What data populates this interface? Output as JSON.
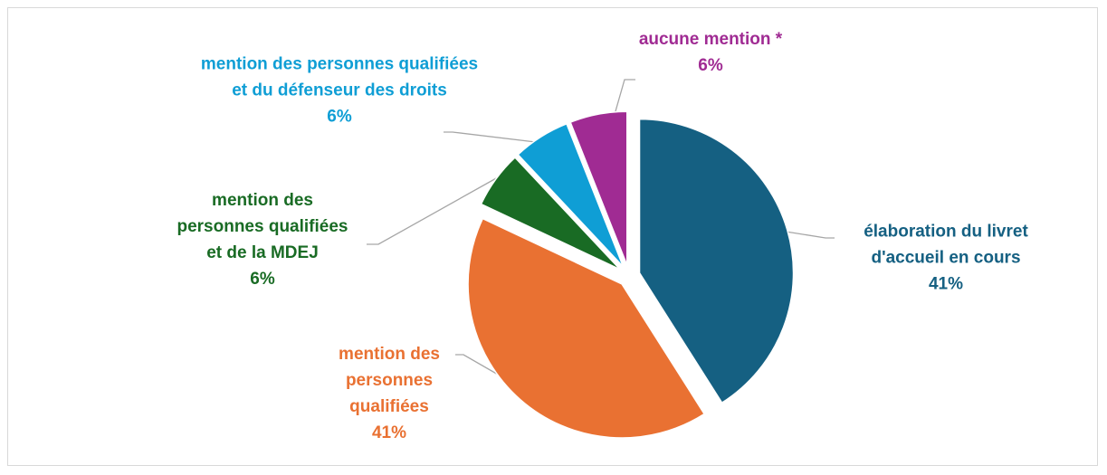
{
  "chart_data": {
    "type": "pie",
    "categories": [
      "élaboration du livret d'accueil en cours",
      "mention des personnes qualifiées",
      "mention des personnes qualifiées et de la MDEJ",
      "mention des personnes qualifiées et du défenseur des droits",
      "aucune mention *"
    ],
    "values": [
      41,
      41,
      6,
      6,
      6
    ],
    "value_labels": [
      "41%",
      "41%",
      "6%",
      "6%",
      "6%"
    ],
    "colors": [
      "#156082",
      "#e97132",
      "#196b24",
      "#0f9ed5",
      "#a02b93"
    ]
  }
}
